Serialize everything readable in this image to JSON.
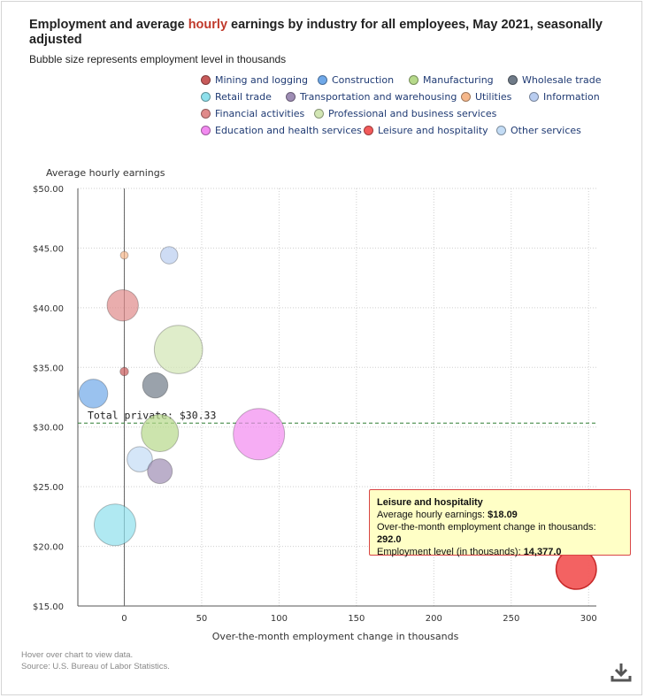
{
  "header": {
    "title_before": "Employment and average ",
    "title_highlight": "hourly",
    "title_after": " earnings by industry for all employees, May 2021, seasonally adjusted",
    "subtitle": "Bubble size represents employment level in thousands"
  },
  "colors": {
    "highlight": "#c0392b",
    "reference_line": "#2e7d32",
    "tooltip_bg": "#ffffc6",
    "tooltip_border": "#d94545"
  },
  "chart_data": {
    "type": "scatter",
    "title": "Employment and average hourly earnings by industry for all employees, May 2021, seasonally adjusted",
    "xlabel": "Over-the-month employment change in thousands",
    "ylabel": "Average hourly earnings",
    "xlim": [
      -30,
      305
    ],
    "ylim": [
      15,
      50
    ],
    "x_ticks": [
      0,
      50,
      100,
      150,
      200,
      250,
      300
    ],
    "y_ticks": [
      "$15.00",
      "$20.00",
      "$25.00",
      "$30.00",
      "$35.00",
      "$40.00",
      "$45.00",
      "$50.00"
    ],
    "y_tick_values": [
      15,
      20,
      25,
      30,
      35,
      40,
      45,
      50
    ],
    "grid": true,
    "legend_position": "top-right",
    "reference_line": {
      "label": "Total private: $30.33",
      "y": 30.33
    },
    "series": [
      {
        "name": "Mining and logging",
        "x": 0,
        "y": 34.65,
        "size": 640,
        "color": "#c85a5a"
      },
      {
        "name": "Construction",
        "x": -20,
        "y": 32.8,
        "size": 7420,
        "color": "#6fa8e8"
      },
      {
        "name": "Manufacturing",
        "x": 23,
        "y": 29.5,
        "size": 12300,
        "color": "#b6d98a"
      },
      {
        "name": "Wholesale trade",
        "x": 20,
        "y": 33.5,
        "size": 5700,
        "color": "#6f7b88"
      },
      {
        "name": "Retail trade",
        "x": -6,
        "y": 21.8,
        "size": 15400,
        "color": "#8ee0ec"
      },
      {
        "name": "Transportation and warehousing",
        "x": 23,
        "y": 26.3,
        "size": 5500,
        "color": "#9e8db4"
      },
      {
        "name": "Utilities",
        "x": 0,
        "y": 44.4,
        "size": 550,
        "color": "#f5b78a"
      },
      {
        "name": "Information",
        "x": 29,
        "y": 44.4,
        "size": 2700,
        "color": "#b9cdf0"
      },
      {
        "name": "Financial activities",
        "x": -1,
        "y": 40.2,
        "size": 8800,
        "color": "#e08a8a"
      },
      {
        "name": "Professional and business services",
        "x": 35,
        "y": 36.5,
        "size": 20900,
        "color": "#d2e6b4"
      },
      {
        "name": "Education and health services",
        "x": 87,
        "y": 29.4,
        "size": 23500,
        "color": "#f28af0"
      },
      {
        "name": "Leisure and hospitality",
        "x": 292.0,
        "y": 18.09,
        "size": 14377.0,
        "color": "#f25a5a"
      },
      {
        "name": "Other services",
        "x": 10,
        "y": 27.3,
        "size": 5700,
        "color": "#c3dcf5"
      }
    ]
  },
  "legend": [
    {
      "label": "Mining and logging",
      "color": "#c85a5a"
    },
    {
      "label": "Construction",
      "color": "#6fa8e8"
    },
    {
      "label": "Manufacturing",
      "color": "#b6d98a"
    },
    {
      "label": "Wholesale trade",
      "color": "#6f7b88"
    },
    {
      "label": "Retail trade",
      "color": "#8ee0ec"
    },
    {
      "label": "Transportation and warehousing",
      "color": "#9e8db4"
    },
    {
      "label": "Utilities",
      "color": "#f5b78a"
    },
    {
      "label": "Information",
      "color": "#b9cdf0"
    },
    {
      "label": "Financial activities",
      "color": "#e08a8a"
    },
    {
      "label": "Professional and business services",
      "color": "#d2e6b4"
    },
    {
      "label": "Education and health services",
      "color": "#f28af0"
    },
    {
      "label": "Leisure and hospitality",
      "color": "#f25a5a"
    },
    {
      "label": "Other services",
      "color": "#c3dcf5"
    }
  ],
  "tooltip": {
    "title": "Leisure and hospitality",
    "line1_label": "Average hourly earnings: ",
    "line1_value": "$18.09",
    "line2_label": "Over-the-month employment change in thousands: ",
    "line2_value": "292.0",
    "line3_label": "Employment level (in thousands): ",
    "line3_value": "14,377.0"
  },
  "footer": {
    "hint": "Hover over chart to view data.",
    "source": "Source: U.S. Bureau of Labor Statistics."
  },
  "icons": {
    "download": "download-icon"
  }
}
